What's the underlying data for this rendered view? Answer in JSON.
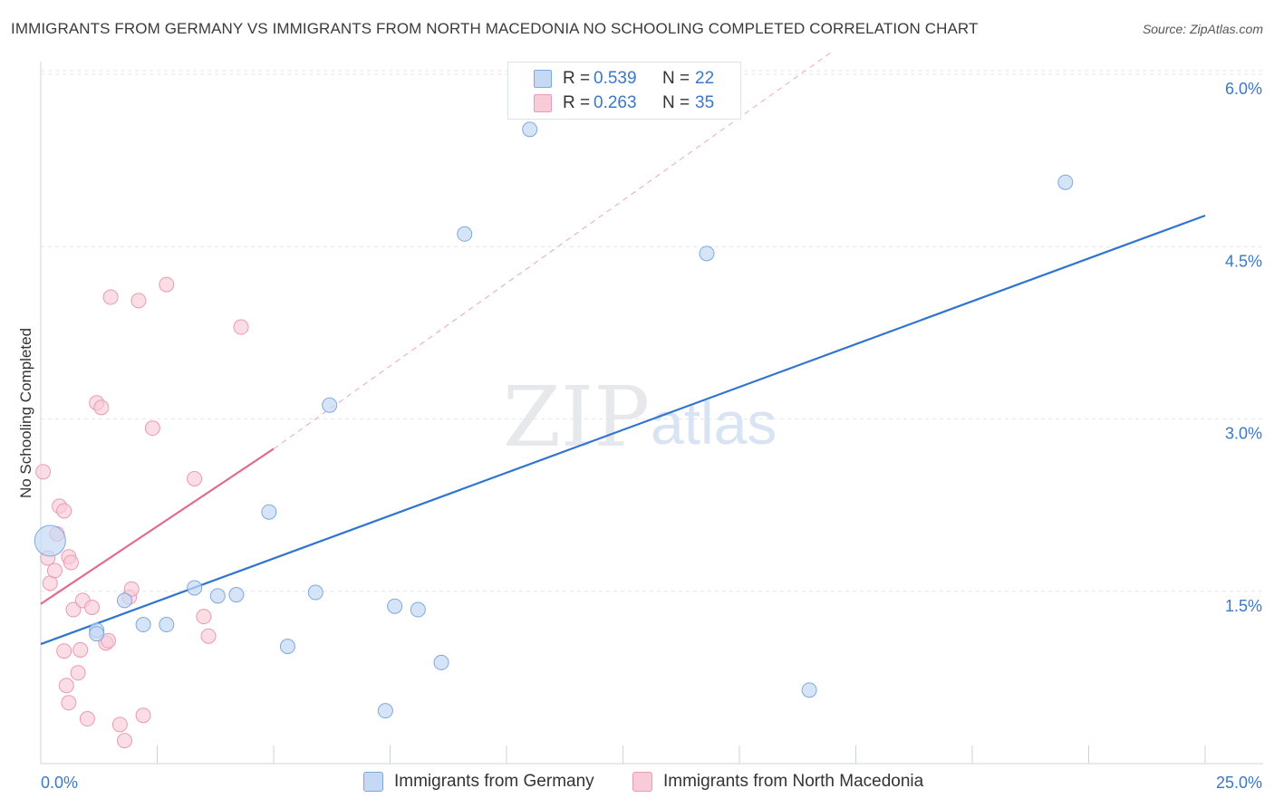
{
  "title": "IMMIGRANTS FROM GERMANY VS IMMIGRANTS FROM NORTH MACEDONIA NO SCHOOLING COMPLETED CORRELATION CHART",
  "source": "Source: ZipAtlas.com",
  "watermark": {
    "zip": "ZIP",
    "atlas": "atlas"
  },
  "legend": {
    "r_label": "R =",
    "n_label": "N =",
    "germany": {
      "r": "0.539",
      "n": "22"
    },
    "macedonia": {
      "r": "0.263",
      "n": "35"
    }
  },
  "colors": {
    "germany_fill": "#c5d9f5",
    "germany_stroke": "#7fa8de",
    "germany_line": "#2f74d0",
    "macedonia_fill": "#f9cbd9",
    "macedonia_stroke": "#eb9ab3",
    "macedonia_line": "#e06b93",
    "tick_text": "#3a78c9",
    "grid": "#e3e7ec"
  },
  "chart_data": {
    "type": "scatter",
    "title": "IMMIGRANTS FROM GERMANY VS IMMIGRANTS FROM NORTH MACEDONIA NO SCHOOLING COMPLETED CORRELATION CHART",
    "xlabel": "",
    "ylabel": "No Schooling Completed",
    "xlim": [
      0,
      25
    ],
    "ylim": [
      0,
      6.2
    ],
    "x_tick_labels": [
      "0.0%",
      "25.0%"
    ],
    "y_ticks": [
      1.5,
      3.0,
      4.5,
      6.0
    ],
    "y_tick_labels": [
      "1.5%",
      "3.0%",
      "4.5%",
      "6.0%"
    ],
    "grid": true,
    "series": [
      {
        "name": "Immigrants from Germany",
        "r": 0.539,
        "n": 22,
        "points": [
          {
            "x": 0.2,
            "y": 1.94,
            "size": "large"
          },
          {
            "x": 1.2,
            "y": 1.16
          },
          {
            "x": 1.2,
            "y": 1.13
          },
          {
            "x": 1.8,
            "y": 1.42
          },
          {
            "x": 2.2,
            "y": 1.21
          },
          {
            "x": 2.7,
            "y": 1.21
          },
          {
            "x": 3.3,
            "y": 1.53
          },
          {
            "x": 3.8,
            "y": 1.46
          },
          {
            "x": 4.2,
            "y": 1.47
          },
          {
            "x": 4.9,
            "y": 2.19
          },
          {
            "x": 5.3,
            "y": 1.02
          },
          {
            "x": 5.9,
            "y": 1.49
          },
          {
            "x": 6.2,
            "y": 3.12
          },
          {
            "x": 7.4,
            "y": 0.46
          },
          {
            "x": 7.6,
            "y": 1.37
          },
          {
            "x": 8.1,
            "y": 1.34
          },
          {
            "x": 8.6,
            "y": 0.88
          },
          {
            "x": 9.1,
            "y": 4.61
          },
          {
            "x": 10.5,
            "y": 5.52
          },
          {
            "x": 14.3,
            "y": 4.44
          },
          {
            "x": 16.5,
            "y": 0.64
          },
          {
            "x": 22.0,
            "y": 5.06
          }
        ],
        "trendline": {
          "x": [
            0,
            25
          ],
          "y": [
            1.04,
            4.77
          ]
        }
      },
      {
        "name": "Immigrants from North Macedonia",
        "r": 0.263,
        "n": 35,
        "points": [
          {
            "x": 0.05,
            "y": 2.54
          },
          {
            "x": 0.15,
            "y": 1.79
          },
          {
            "x": 0.2,
            "y": 1.57
          },
          {
            "x": 0.3,
            "y": 1.68
          },
          {
            "x": 0.35,
            "y": 2.0
          },
          {
            "x": 0.4,
            "y": 2.24
          },
          {
            "x": 0.5,
            "y": 0.98
          },
          {
            "x": 0.5,
            "y": 2.2
          },
          {
            "x": 0.55,
            "y": 0.68
          },
          {
            "x": 0.6,
            "y": 0.53
          },
          {
            "x": 0.6,
            "y": 1.8
          },
          {
            "x": 0.65,
            "y": 1.75
          },
          {
            "x": 0.7,
            "y": 1.34
          },
          {
            "x": 0.8,
            "y": 0.79
          },
          {
            "x": 0.85,
            "y": 0.99
          },
          {
            "x": 0.9,
            "y": 1.42
          },
          {
            "x": 1.0,
            "y": 0.39
          },
          {
            "x": 1.1,
            "y": 1.36
          },
          {
            "x": 1.2,
            "y": 3.14
          },
          {
            "x": 1.3,
            "y": 3.1
          },
          {
            "x": 1.4,
            "y": 1.05
          },
          {
            "x": 1.45,
            "y": 1.07
          },
          {
            "x": 1.5,
            "y": 4.06
          },
          {
            "x": 1.7,
            "y": 0.34
          },
          {
            "x": 1.8,
            "y": 0.2
          },
          {
            "x": 1.9,
            "y": 1.45
          },
          {
            "x": 1.95,
            "y": 1.52
          },
          {
            "x": 2.1,
            "y": 4.03
          },
          {
            "x": 2.2,
            "y": 0.42
          },
          {
            "x": 2.4,
            "y": 2.92
          },
          {
            "x": 2.7,
            "y": 4.17
          },
          {
            "x": 3.3,
            "y": 2.48
          },
          {
            "x": 3.5,
            "y": 1.28
          },
          {
            "x": 3.6,
            "y": 1.11
          },
          {
            "x": 4.3,
            "y": 3.8
          }
        ],
        "trendline": {
          "x": [
            0,
            5
          ],
          "y": [
            1.39,
            2.74
          ]
        },
        "trendline_extended": {
          "x": [
            5,
            17
          ],
          "y": [
            2.74,
            6.2
          ]
        }
      }
    ]
  },
  "bottom_legend": {
    "germany_label": "Immigrants from Germany",
    "macedonia_label": "Immigrants from North Macedonia"
  }
}
